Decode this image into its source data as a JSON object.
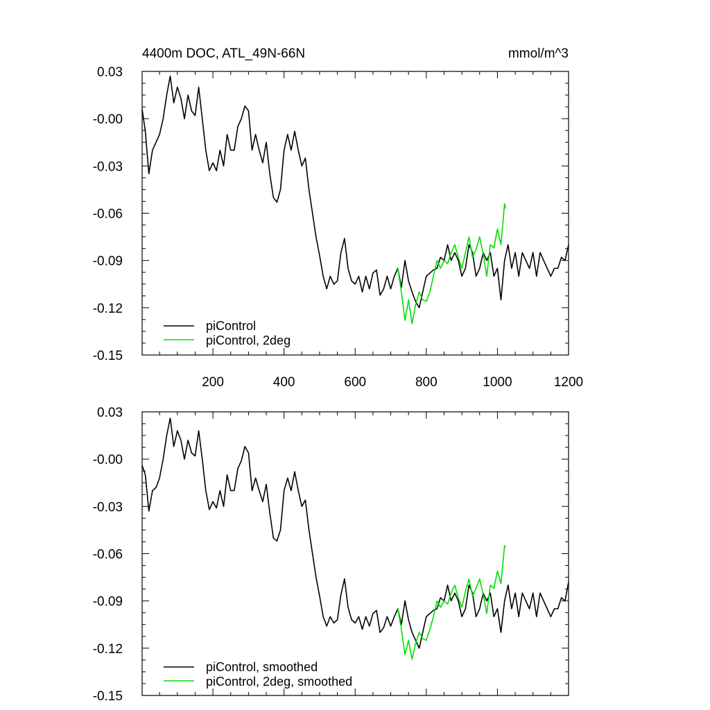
{
  "chart_data": [
    {
      "type": "line",
      "title": "4400m DOC, ATL_49N-66N",
      "units": "mmol/m^3",
      "xlabel": "",
      "ylabel": "",
      "xlim": [
        1,
        1200
      ],
      "ylim": [
        -0.15,
        0.03
      ],
      "xticks": [
        200,
        400,
        600,
        800,
        1000,
        1200
      ],
      "xtick_labels": [
        "200",
        "400",
        "600",
        "800",
        "1000",
        "1200"
      ],
      "yticks": [
        0.03,
        0.0,
        -0.03,
        -0.06,
        -0.09,
        -0.12,
        -0.15
      ],
      "ytick_labels": [
        "0.03",
        "-0.00",
        "-0.03",
        "-0.06",
        "-0.09",
        "-0.12",
        "-0.15"
      ],
      "grid": false,
      "legend_position": "bottom-left",
      "series": [
        {
          "name": "piControl",
          "color": "#000000",
          "x": [
            1,
            10,
            20,
            30,
            40,
            50,
            60,
            70,
            80,
            90,
            100,
            110,
            120,
            130,
            140,
            150,
            160,
            170,
            180,
            190,
            200,
            210,
            220,
            230,
            240,
            250,
            260,
            270,
            280,
            290,
            300,
            310,
            320,
            330,
            340,
            350,
            360,
            370,
            380,
            390,
            400,
            410,
            420,
            430,
            440,
            450,
            460,
            470,
            480,
            490,
            500,
            510,
            520,
            530,
            540,
            550,
            560,
            570,
            580,
            590,
            600,
            610,
            620,
            630,
            640,
            650,
            660,
            670,
            680,
            690,
            700,
            710,
            720,
            730,
            740,
            750,
            760,
            770,
            780,
            790,
            800,
            810,
            820,
            830,
            840,
            850,
            860,
            870,
            880,
            890,
            900,
            910,
            920,
            930,
            940,
            950,
            960,
            970,
            980,
            990,
            1000,
            1010,
            1020,
            1030,
            1040,
            1050,
            1060,
            1070,
            1080,
            1090,
            1100,
            1110,
            1120,
            1130,
            1140,
            1150,
            1160,
            1170,
            1180,
            1190,
            1200
          ],
          "y": [
            0.006,
            -0.008,
            -0.035,
            -0.02,
            -0.015,
            -0.01,
            0.0,
            0.015,
            0.027,
            0.01,
            0.02,
            0.013,
            0.0,
            0.015,
            0.005,
            0.002,
            0.02,
            0.0,
            -0.02,
            -0.033,
            -0.028,
            -0.033,
            -0.02,
            -0.03,
            -0.01,
            -0.02,
            -0.02,
            -0.005,
            0.0,
            0.008,
            0.005,
            -0.02,
            -0.01,
            -0.02,
            -0.028,
            -0.015,
            -0.035,
            -0.05,
            -0.053,
            -0.045,
            -0.02,
            -0.01,
            -0.02,
            -0.008,
            -0.02,
            -0.03,
            -0.025,
            -0.045,
            -0.06,
            -0.075,
            -0.087,
            -0.1,
            -0.108,
            -0.1,
            -0.105,
            -0.103,
            -0.085,
            -0.076,
            -0.095,
            -0.103,
            -0.105,
            -0.1,
            -0.11,
            -0.1,
            -0.108,
            -0.098,
            -0.096,
            -0.112,
            -0.108,
            -0.1,
            -0.108,
            -0.1,
            -0.095,
            -0.107,
            -0.09,
            -0.103,
            -0.11,
            -0.116,
            -0.12,
            -0.11,
            -0.1,
            -0.098,
            -0.096,
            -0.095,
            -0.088,
            -0.09,
            -0.08,
            -0.09,
            -0.085,
            -0.09,
            -0.1,
            -0.095,
            -0.08,
            -0.085,
            -0.1,
            -0.095,
            -0.085,
            -0.09,
            -0.085,
            -0.1,
            -0.095,
            -0.115,
            -0.09,
            -0.08,
            -0.095,
            -0.085,
            -0.1,
            -0.085,
            -0.09,
            -0.095,
            -0.085,
            -0.1,
            -0.085,
            -0.09,
            -0.095,
            -0.1,
            -0.095,
            -0.095,
            -0.088,
            -0.09,
            -0.08
          ]
        },
        {
          "name": "piControl, 2deg",
          "color": "#00dd00",
          "x": [
            720,
            730,
            740,
            750,
            760,
            770,
            780,
            790,
            800,
            810,
            820,
            830,
            840,
            850,
            860,
            870,
            880,
            890,
            900,
            910,
            920,
            930,
            940,
            950,
            960,
            970,
            980,
            990,
            1000,
            1010,
            1020,
            1023
          ],
          "y": [
            -0.095,
            -0.11,
            -0.128,
            -0.115,
            -0.13,
            -0.118,
            -0.11,
            -0.115,
            -0.116,
            -0.11,
            -0.1,
            -0.09,
            -0.095,
            -0.09,
            -0.092,
            -0.085,
            -0.08,
            -0.088,
            -0.095,
            -0.085,
            -0.075,
            -0.088,
            -0.083,
            -0.075,
            -0.086,
            -0.1,
            -0.08,
            -0.082,
            -0.07,
            -0.08,
            -0.054,
            -0.057
          ]
        }
      ]
    },
    {
      "type": "line",
      "title": "",
      "xlabel": "",
      "ylabel": "",
      "xlim": [
        1,
        1200
      ],
      "ylim": [
        -0.15,
        0.03
      ],
      "yticks": [
        0.03,
        0.0,
        -0.03,
        -0.06,
        -0.09,
        -0.12,
        -0.15
      ],
      "ytick_labels": [
        "0.03",
        "-0.00",
        "-0.03",
        "-0.06",
        "-0.09",
        "-0.12",
        "-0.15"
      ],
      "grid": false,
      "legend_position": "bottom-left",
      "series": [
        {
          "name": "piControl, smoothed",
          "color": "#000000",
          "x": [
            1,
            10,
            20,
            30,
            40,
            50,
            60,
            70,
            80,
            90,
            100,
            110,
            120,
            130,
            140,
            150,
            160,
            170,
            180,
            190,
            200,
            210,
            220,
            230,
            240,
            250,
            260,
            270,
            280,
            290,
            300,
            310,
            320,
            330,
            340,
            350,
            360,
            370,
            380,
            390,
            400,
            410,
            420,
            430,
            440,
            450,
            460,
            470,
            480,
            490,
            500,
            510,
            520,
            530,
            540,
            550,
            560,
            570,
            580,
            590,
            600,
            610,
            620,
            630,
            640,
            650,
            660,
            670,
            680,
            690,
            700,
            710,
            720,
            730,
            740,
            750,
            760,
            770,
            780,
            790,
            800,
            810,
            820,
            830,
            840,
            850,
            860,
            870,
            880,
            890,
            900,
            910,
            920,
            930,
            940,
            950,
            960,
            970,
            980,
            990,
            1000,
            1010,
            1020,
            1030,
            1040,
            1050,
            1060,
            1070,
            1080,
            1090,
            1100,
            1110,
            1120,
            1130,
            1140,
            1150,
            1160,
            1170,
            1180,
            1190,
            1200
          ],
          "y": [
            -0.004,
            -0.01,
            -0.033,
            -0.02,
            -0.018,
            -0.012,
            0.0,
            0.015,
            0.026,
            0.008,
            0.018,
            0.012,
            0.0,
            0.012,
            0.004,
            0.002,
            0.018,
            0.0,
            -0.02,
            -0.032,
            -0.027,
            -0.031,
            -0.02,
            -0.03,
            -0.01,
            -0.02,
            -0.02,
            -0.006,
            -0.001,
            0.008,
            0.004,
            -0.02,
            -0.012,
            -0.02,
            -0.027,
            -0.016,
            -0.034,
            -0.05,
            -0.052,
            -0.045,
            -0.02,
            -0.012,
            -0.02,
            -0.008,
            -0.02,
            -0.03,
            -0.026,
            -0.045,
            -0.06,
            -0.075,
            -0.087,
            -0.1,
            -0.106,
            -0.1,
            -0.104,
            -0.102,
            -0.086,
            -0.076,
            -0.094,
            -0.102,
            -0.104,
            -0.1,
            -0.108,
            -0.1,
            -0.106,
            -0.098,
            -0.096,
            -0.11,
            -0.107,
            -0.1,
            -0.106,
            -0.1,
            -0.095,
            -0.105,
            -0.09,
            -0.102,
            -0.11,
            -0.115,
            -0.12,
            -0.11,
            -0.1,
            -0.098,
            -0.096,
            -0.095,
            -0.088,
            -0.09,
            -0.08,
            -0.09,
            -0.085,
            -0.09,
            -0.1,
            -0.095,
            -0.08,
            -0.085,
            -0.1,
            -0.095,
            -0.085,
            -0.09,
            -0.085,
            -0.1,
            -0.095,
            -0.11,
            -0.09,
            -0.08,
            -0.095,
            -0.085,
            -0.1,
            -0.085,
            -0.09,
            -0.095,
            -0.085,
            -0.1,
            -0.085,
            -0.09,
            -0.095,
            -0.1,
            -0.095,
            -0.095,
            -0.088,
            -0.09,
            -0.078
          ]
        },
        {
          "name": "piControl, 2deg, smoothed",
          "color": "#00dd00",
          "x": [
            720,
            730,
            740,
            750,
            760,
            770,
            780,
            790,
            800,
            810,
            820,
            830,
            840,
            850,
            860,
            870,
            880,
            890,
            900,
            910,
            920,
            930,
            940,
            950,
            960,
            970,
            980,
            990,
            1000,
            1010,
            1020,
            1023
          ],
          "y": [
            -0.095,
            -0.108,
            -0.124,
            -0.115,
            -0.127,
            -0.117,
            -0.11,
            -0.114,
            -0.115,
            -0.108,
            -0.1,
            -0.09,
            -0.094,
            -0.09,
            -0.092,
            -0.085,
            -0.08,
            -0.088,
            -0.094,
            -0.084,
            -0.076,
            -0.087,
            -0.082,
            -0.076,
            -0.086,
            -0.098,
            -0.08,
            -0.082,
            -0.071,
            -0.079,
            -0.055,
            -0.056
          ]
        }
      ]
    }
  ]
}
